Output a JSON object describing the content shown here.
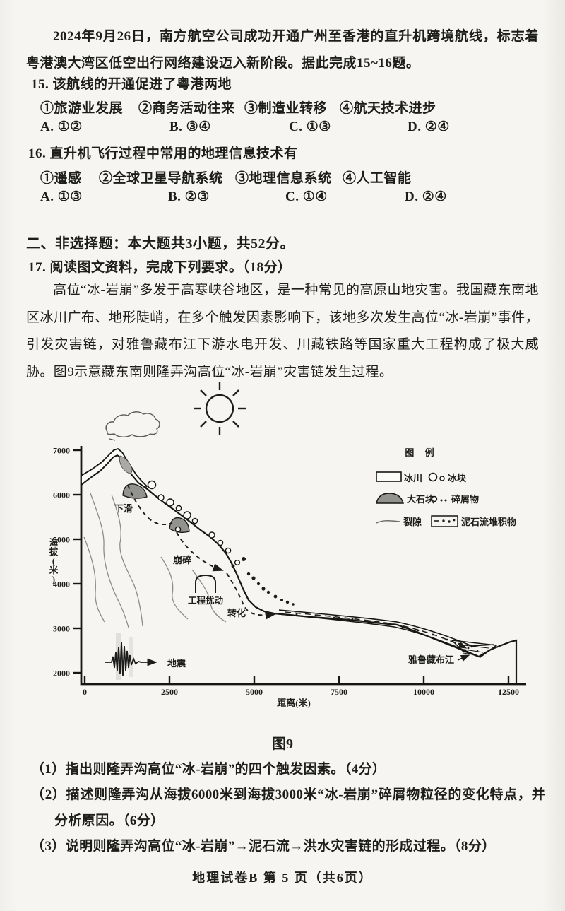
{
  "page": {
    "intro": "2024年9月26日，南方航空公司成功开通广州至香港的直升机跨境航线，标志着粤港澳大湾区低空出行网络建设迈入新阶段。据此完成15~16题。",
    "footer": "地理试卷B 第 5 页（共6页）"
  },
  "q15": {
    "stem": "15. 该航线的开通促进了粤港两地",
    "options": [
      "①旅游业发展",
      "②商务活动往来",
      "③制造业转移",
      "④航天技术进步"
    ],
    "choices": [
      "A. ①②",
      "B. ③④",
      "C. ①③",
      "D. ②④"
    ]
  },
  "q16": {
    "stem": "16. 直升机飞行过程中常用的地理信息技术有",
    "options": [
      "①遥感",
      "②全球卫星导航系统",
      "③地理信息系统",
      "④人工智能"
    ],
    "choices": [
      "A. ①③",
      "B. ②③",
      "C. ①④",
      "D. ②④"
    ]
  },
  "section2": {
    "heading": "二、非选择题：本大题共3小题，共52分。"
  },
  "q17": {
    "stem": "17. 阅读图文资料，完成下列要求。（18分）",
    "passage": "高位“冰-岩崩”多发于高寒峡谷地区，是一种常见的高原山地灾害。我国藏东南地区冰川广布、地形陡峭，在多个触发因素影响下，该地多次发生高位“冰-岩崩”事件，引发灾害链，对雅鲁藏布江下游水电开发、川藏铁路等国家重大工程构成了极大威胁。图9示意藏东南则隆弄沟高位“冰-岩崩”灾害链发生过程。",
    "sub_questions": [
      "（1）指出则隆弄沟高位“冰-岩崩”的四个触发因素。（4分）",
      "（2）描述则隆弄沟从海拔6000米到海拔3000米“冰-岩崩”碎屑物粒径的变化特点，并分析原因。（6分）",
      "（3）说明则隆弄沟高位“冰-岩崩”→泥石流→洪水灾害链的形成过程。（8分）"
    ]
  },
  "figure": {
    "caption": "图9",
    "ylabel": "海拔(米)",
    "xlabel": "距离(米)",
    "y_ticks": [
      "7000",
      "6000",
      "5000",
      "4000",
      "3000",
      "2000"
    ],
    "x_ticks": [
      "0",
      "2500",
      "5000",
      "7500",
      "10000",
      "12500"
    ],
    "labels": {
      "slide": "下滑",
      "fragment": "崩碎",
      "engineering": "工程扰动",
      "transform": "转化",
      "earthquake": "地震",
      "river": "雅鲁藏布江"
    },
    "legend": {
      "title": "图 例",
      "glacier": "冰川",
      "ice_block": "冰块",
      "big_rock": "大石块",
      "debris": "碎屑物",
      "fissure": "裂隙",
      "deposit": "泥石流堆积物"
    },
    "profile_points_m": [
      [
        0,
        6200
      ],
      [
        800,
        6800
      ],
      [
        1500,
        6300
      ],
      [
        2500,
        5400
      ],
      [
        3500,
        4600
      ],
      [
        4600,
        3700
      ],
      [
        5500,
        3400
      ],
      [
        7500,
        3250
      ],
      [
        9800,
        3000
      ],
      [
        11700,
        2500
      ],
      [
        12700,
        2950
      ]
    ]
  }
}
